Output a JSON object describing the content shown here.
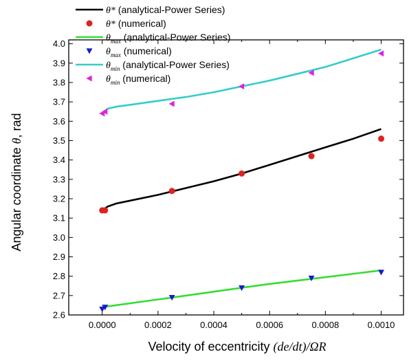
{
  "chart_data": {
    "type": "line",
    "xlabel": {
      "prefix": "Velocity of eccentricity ",
      "math": "(de/dt)/ΩR"
    },
    "ylabel": {
      "prefix": "Angular coordinate ",
      "math": "θ",
      "suffix": ", rad"
    },
    "xlim": [
      -0.00012,
      0.00108
    ],
    "ylim": [
      2.6,
      4.02
    ],
    "xticks": [
      0.0,
      0.0002,
      0.0004,
      0.0006,
      0.0008,
      0.001
    ],
    "xtick_labels": [
      "0.0000",
      "0.0002",
      "0.0004",
      "0.0006",
      "0.0008",
      "0.0010"
    ],
    "yticks": [
      2.6,
      2.7,
      2.8,
      2.9,
      3.0,
      3.1,
      3.2,
      3.3,
      3.4,
      3.5,
      3.6,
      3.7,
      3.8,
      3.9,
      4.0
    ],
    "ytick_labels": [
      "2.6",
      "2.7",
      "2.8",
      "2.9",
      "3.0",
      "3.1",
      "3.2",
      "3.3",
      "3.4",
      "3.5",
      "3.6",
      "3.7",
      "3.8",
      "3.9",
      "4.0"
    ],
    "grid": false,
    "legend_position": "top-left",
    "series": [
      {
        "name": "θ* (analytical-Power Series)",
        "symbol": "θ*",
        "sub": "",
        "rest": " (analytical-Power Series)",
        "kind": "line",
        "color": "#000000",
        "x": [
          0.0,
          2e-05,
          5e-05,
          0.0001,
          0.0002,
          0.0003,
          0.0004,
          0.0005,
          0.0006,
          0.0007,
          0.0008,
          0.0009,
          0.001
        ],
        "y": [
          3.14,
          3.16,
          3.175,
          3.19,
          3.22,
          3.255,
          3.29,
          3.33,
          3.375,
          3.42,
          3.465,
          3.51,
          3.56
        ]
      },
      {
        "name": "θ* (numerical)",
        "symbol": "θ*",
        "sub": "",
        "rest": " (numerical)",
        "kind": "marker",
        "marker": "circle",
        "color": "#dd2222",
        "x": [
          0.0,
          1e-05,
          0.00025,
          0.0005,
          0.00075,
          0.001
        ],
        "y": [
          3.14,
          3.14,
          3.24,
          3.33,
          3.42,
          3.51
        ]
      },
      {
        "name": "θmax (analytical-Power Series)",
        "symbol": "θ",
        "sub": "max",
        "rest": " (analytical-Power Series)",
        "kind": "line",
        "color": "#33dd33",
        "x": [
          0.0,
          0.0002,
          0.0004,
          0.0006,
          0.0008,
          0.001
        ],
        "y": [
          2.64,
          2.68,
          2.72,
          2.76,
          2.795,
          2.83
        ]
      },
      {
        "name": "θmax (numerical)",
        "symbol": "θ",
        "sub": "max",
        "rest": " (numerical)",
        "kind": "marker",
        "marker": "triangle-down",
        "color": "#1a1acc",
        "x": [
          0.0,
          1e-05,
          0.00025,
          0.0005,
          0.00075,
          0.001
        ],
        "y": [
          2.63,
          2.64,
          2.69,
          2.74,
          2.79,
          2.82
        ]
      },
      {
        "name": "θmin (analytical-Power Series)",
        "symbol": "θ",
        "sub": "min",
        "rest": " (analytical-Power Series)",
        "kind": "line",
        "color": "#33cccc",
        "x": [
          0.0,
          2e-05,
          5e-05,
          0.0001,
          0.0002,
          0.0003,
          0.0004,
          0.0005,
          0.0006,
          0.0007,
          0.0008,
          0.0009,
          0.001
        ],
        "y": [
          3.64,
          3.665,
          3.675,
          3.685,
          3.705,
          3.725,
          3.75,
          3.78,
          3.81,
          3.845,
          3.88,
          3.925,
          3.97
        ]
      },
      {
        "name": "θmin (numerical)",
        "symbol": "θ",
        "sub": "min",
        "rest": " (numerical)",
        "kind": "marker",
        "marker": "triangle-left",
        "color": "#dd22dd",
        "x": [
          0.0,
          1e-05,
          0.00025,
          0.0005,
          0.00075,
          0.001
        ],
        "y": [
          3.64,
          3.65,
          3.69,
          3.78,
          3.85,
          3.95
        ]
      }
    ]
  }
}
